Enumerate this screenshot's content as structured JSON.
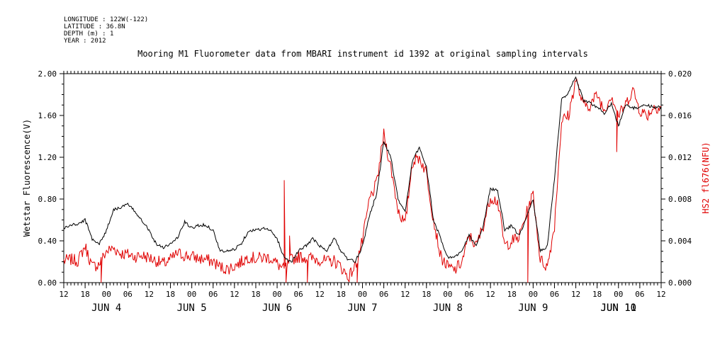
{
  "meta": [
    "LONGITUDE : 122W(-122)",
    "LATITUDE : 36.8N",
    "DEPTH (m) : 1",
    "YEAR : 2012"
  ],
  "chart_data": {
    "type": "line",
    "title": "Mooring M1 Fluorometer data from MBARI instrument id 1392 at original sampling intervals",
    "ylabel_left": "Wetstar Fluorescence(V)",
    "ylabel_right": "HS2 fl676(NFU)",
    "ylim_left": [
      0,
      2
    ],
    "ylim_right": [
      0,
      0.02
    ],
    "yticks_left": [
      "0.00",
      "0.40",
      "0.80",
      "1.20",
      "1.60",
      "2.00"
    ],
    "yticks_right": [
      "0.000",
      "0.004",
      "0.008",
      "0.012",
      "0.016",
      "0.020"
    ],
    "x_range_hours": [
      0,
      168
    ],
    "x_start": "2012-06-04 12:00",
    "x_end": "2012-06-11 12:00",
    "hour_ticks": [
      "12",
      "18",
      "00",
      "06",
      "12",
      "18",
      "00",
      "06",
      "12",
      "18",
      "00",
      "06",
      "12",
      "18",
      "00",
      "06",
      "12",
      "18",
      "00",
      "06",
      "12",
      "18",
      "00",
      "06",
      "12",
      "18",
      "00",
      "06",
      "12"
    ],
    "day_labels": [
      "JUN  4",
      "JUN  5",
      "JUN  6",
      "JUN  7",
      "JUN  8",
      "JUN  9",
      "JUN 10",
      "JUN 11"
    ],
    "series": [
      {
        "name": "Wetstar Fluorescence(V)",
        "axis": "left",
        "color": "#000000",
        "x": [
          0,
          2,
          4,
          6,
          8,
          10,
          12,
          14,
          16,
          18,
          20,
          22,
          24,
          26,
          28,
          30,
          32,
          34,
          36,
          38,
          40,
          42,
          44,
          46,
          48,
          50,
          52,
          54,
          56,
          58,
          60,
          62,
          64,
          66,
          68,
          70,
          72,
          74,
          76,
          78,
          80,
          82,
          84,
          86,
          88,
          90,
          92,
          94,
          96,
          98,
          100,
          102,
          104,
          106,
          108,
          110,
          112,
          114,
          116,
          118,
          120,
          122,
          124,
          126,
          128,
          130,
          132,
          134,
          136,
          138,
          140,
          142,
          144,
          146,
          148,
          150,
          152,
          154,
          156,
          158,
          160,
          162,
          164,
          166,
          168
        ],
        "values": [
          0.52,
          0.55,
          0.56,
          0.6,
          0.42,
          0.37,
          0.5,
          0.7,
          0.72,
          0.75,
          0.68,
          0.6,
          0.5,
          0.37,
          0.34,
          0.37,
          0.43,
          0.58,
          0.52,
          0.55,
          0.55,
          0.5,
          0.3,
          0.3,
          0.32,
          0.38,
          0.5,
          0.5,
          0.52,
          0.5,
          0.42,
          0.24,
          0.2,
          0.3,
          0.35,
          0.42,
          0.35,
          0.3,
          0.43,
          0.3,
          0.22,
          0.2,
          0.35,
          0.65,
          0.85,
          1.35,
          1.2,
          0.8,
          0.68,
          1.15,
          1.3,
          1.1,
          0.6,
          0.42,
          0.24,
          0.25,
          0.3,
          0.45,
          0.35,
          0.55,
          0.9,
          0.88,
          0.5,
          0.55,
          0.45,
          0.6,
          0.8,
          0.3,
          0.35,
          1.0,
          1.75,
          1.82,
          1.97,
          1.75,
          1.72,
          1.68,
          1.62,
          1.72,
          1.5,
          1.7,
          1.67,
          1.68,
          1.7,
          1.68,
          1.68
        ]
      },
      {
        "name": "HS2 fl676(NFU)",
        "axis": "right",
        "color": "#e00000",
        "x": [
          0,
          2,
          4,
          6,
          8,
          10,
          12,
          14,
          16,
          18,
          20,
          22,
          24,
          26,
          28,
          30,
          32,
          34,
          36,
          38,
          40,
          42,
          44,
          46,
          48,
          50,
          52,
          54,
          56,
          58,
          60,
          62,
          64,
          66,
          68,
          70,
          72,
          74,
          76,
          78,
          80,
          82,
          84,
          86,
          88,
          90,
          92,
          94,
          96,
          98,
          100,
          102,
          104,
          106,
          108,
          110,
          112,
          114,
          116,
          118,
          120,
          122,
          124,
          126,
          128,
          130,
          132,
          134,
          136,
          138,
          140,
          142,
          144,
          146,
          148,
          150,
          152,
          154,
          156,
          158,
          160,
          162,
          164,
          166,
          168
        ],
        "values": [
          0.0021,
          0.0022,
          0.0021,
          0.0035,
          0.0015,
          0.0018,
          0.003,
          0.0033,
          0.0028,
          0.0027,
          0.0025,
          0.0026,
          0.0024,
          0.0021,
          0.0018,
          0.0022,
          0.0028,
          0.0026,
          0.0025,
          0.0023,
          0.0022,
          0.002,
          0.0015,
          0.0013,
          0.0016,
          0.002,
          0.0025,
          0.0023,
          0.0024,
          0.0024,
          0.0018,
          0.0012,
          0.0022,
          0.0025,
          0.0024,
          0.0023,
          0.0022,
          0.002,
          0.0021,
          0.0015,
          0.0005,
          0.0016,
          0.004,
          0.008,
          0.0095,
          0.0142,
          0.011,
          0.007,
          0.0055,
          0.0115,
          0.012,
          0.0105,
          0.006,
          0.0025,
          0.0015,
          0.0012,
          0.002,
          0.0045,
          0.0035,
          0.0055,
          0.0082,
          0.0078,
          0.0035,
          0.004,
          0.0043,
          0.0065,
          0.0085,
          0.0022,
          0.0015,
          0.0055,
          0.0155,
          0.016,
          0.0195,
          0.017,
          0.017,
          0.018,
          0.0165,
          0.018,
          0.016,
          0.017,
          0.0185,
          0.0165,
          0.016,
          0.0168,
          0.0168
        ]
      }
    ],
    "spikes": [
      {
        "axis": "right",
        "x": 62.0,
        "value": 0.0098
      },
      {
        "axis": "right",
        "x": 63.5,
        "value": 0.0045
      },
      {
        "axis": "right",
        "x": 155.5,
        "value": 0.0125
      }
    ],
    "dips": [
      {
        "axis": "right",
        "x": 10.5,
        "value": 0.0
      },
      {
        "axis": "right",
        "x": 62.5,
        "value": 0.0
      },
      {
        "axis": "right",
        "x": 68.5,
        "value": 0.0
      },
      {
        "axis": "right",
        "x": 82.5,
        "value": 0.0
      },
      {
        "axis": "right",
        "x": 130.5,
        "value": 0.0
      }
    ]
  }
}
